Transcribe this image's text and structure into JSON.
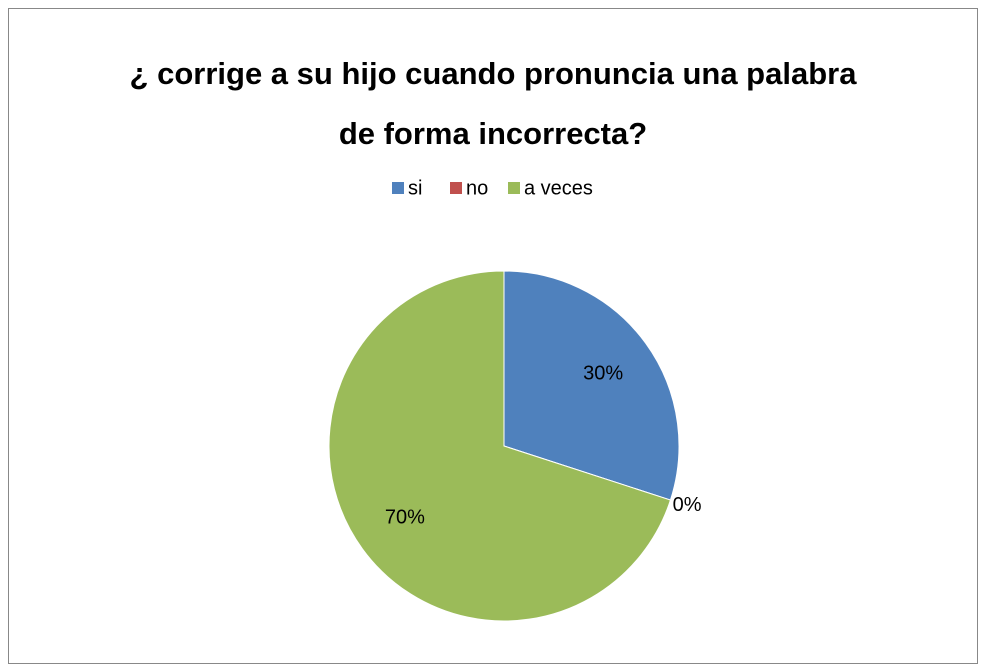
{
  "chart_data": {
    "type": "pie",
    "title": "¿ corrige a su hijo cuando pronuncia una palabra\nde forma incorrecta?",
    "categories": [
      "si",
      "no",
      "a veces"
    ],
    "values": [
      30,
      0,
      70
    ],
    "value_labels": [
      "30%",
      "0%",
      "70%"
    ],
    "colors": [
      "#4f81bd",
      "#c0504d",
      "#9bbb59"
    ],
    "legend": "top"
  }
}
